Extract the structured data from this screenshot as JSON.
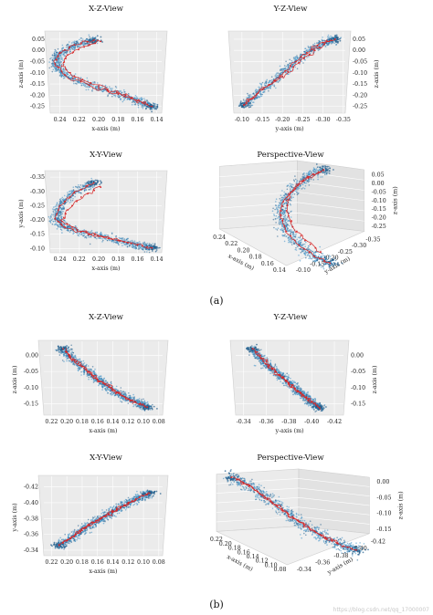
{
  "figure": {
    "captions": [
      "(a)",
      "(b)"
    ],
    "watermark": "https://blog.csdn.net/qq_17000007"
  },
  "colors": {
    "scatter": "#3a8fc7",
    "scatter_dark": "#1f5d8c",
    "path": "#d62728",
    "pane": "#ebebeb",
    "pane_side": "#e2e2e2"
  },
  "chart_data": [
    {
      "id": "a-xz",
      "type": "scatter",
      "title": "X-Z-View",
      "group": "a",
      "kind": "2d",
      "xlabel": "x-axis (m)",
      "ylabel": "z-axis (m)",
      "xticks": [
        "0.24",
        "0.22",
        "0.20",
        "0.18",
        "0.16",
        "0.14"
      ],
      "yticks": [
        "0.05",
        "0.00",
        "-0.05",
        "-0.10",
        "-0.15",
        "-0.20",
        "-0.25"
      ],
      "xlim": [
        0.25,
        0.135
      ],
      "ylim": [
        -0.28,
        0.07
      ],
      "path": [
        [
          0.205,
          0.045
        ],
        [
          0.225,
          0.025
        ],
        [
          0.24,
          -0.01
        ],
        [
          0.245,
          -0.06
        ],
        [
          0.235,
          -0.11
        ],
        [
          0.21,
          -0.155
        ],
        [
          0.18,
          -0.195
        ],
        [
          0.16,
          -0.225
        ],
        [
          0.145,
          -0.25
        ]
      ],
      "path2": [
        [
          0.198,
          0.04
        ],
        [
          0.215,
          0.015
        ],
        [
          0.232,
          -0.02
        ],
        [
          0.238,
          -0.07
        ],
        [
          0.225,
          -0.115
        ],
        [
          0.2,
          -0.16
        ],
        [
          0.172,
          -0.2
        ],
        [
          0.152,
          -0.232
        ]
      ],
      "noise": 0.012,
      "noise_unit": "x"
    },
    {
      "id": "a-yz",
      "type": "scatter",
      "title": "Y-Z-View",
      "group": "a",
      "kind": "2d",
      "xlabel": "y-axis (m)",
      "ylabel": "z-axis (m)",
      "xticks": [
        "-0.10",
        "-0.15",
        "-0.20",
        "-0.25",
        "-0.30",
        "-0.35"
      ],
      "yticks": [
        "0.05",
        "0.00",
        "-0.05",
        "-0.10",
        "-0.15",
        "-0.20",
        "-0.25"
      ],
      "xlim": [
        -0.08,
        -0.355
      ],
      "ylim": [
        -0.28,
        0.07
      ],
      "path": [
        [
          -0.105,
          -0.245
        ],
        [
          -0.14,
          -0.19
        ],
        [
          -0.18,
          -0.135
        ],
        [
          -0.22,
          -0.07
        ],
        [
          -0.26,
          -0.01
        ],
        [
          -0.3,
          0.035
        ],
        [
          -0.33,
          0.05
        ]
      ],
      "path2": [
        [
          -0.11,
          -0.235
        ],
        [
          -0.15,
          -0.175
        ],
        [
          -0.2,
          -0.115
        ],
        [
          -0.24,
          -0.055
        ],
        [
          -0.28,
          0.0
        ],
        [
          -0.315,
          0.04
        ]
      ],
      "noise": 0.012,
      "noise_unit": "y"
    },
    {
      "id": "a-xy",
      "type": "scatter",
      "title": "X-Y-View",
      "group": "a",
      "kind": "2d",
      "xlabel": "x-axis (m)",
      "ylabel": "y-axis (m)",
      "xticks": [
        "0.24",
        "0.22",
        "0.20",
        "0.18",
        "0.16",
        "0.14"
      ],
      "yticks": [
        "-0.35",
        "-0.30",
        "-0.25",
        "-0.20",
        "-0.15",
        "-0.10"
      ],
      "xlim": [
        0.25,
        0.135
      ],
      "ylim": [
        -0.085,
        -0.36
      ],
      "path": [
        [
          0.205,
          -0.33
        ],
        [
          0.225,
          -0.295
        ],
        [
          0.24,
          -0.25
        ],
        [
          0.245,
          -0.205
        ],
        [
          0.235,
          -0.175
        ],
        [
          0.21,
          -0.15
        ],
        [
          0.18,
          -0.128
        ],
        [
          0.16,
          -0.112
        ],
        [
          0.145,
          -0.102
        ]
      ],
      "path2": [
        [
          0.198,
          -0.315
        ],
        [
          0.218,
          -0.28
        ],
        [
          0.232,
          -0.235
        ],
        [
          0.238,
          -0.195
        ],
        [
          0.222,
          -0.165
        ],
        [
          0.195,
          -0.14
        ],
        [
          0.17,
          -0.12
        ]
      ],
      "noise": 0.012,
      "noise_unit": "x"
    },
    {
      "id": "a-persp",
      "type": "scatter",
      "title": "Perspective-View",
      "group": "a",
      "kind": "3d",
      "xlabel": "x-axis (m)",
      "ylabel": "y-axis (m)",
      "zlabel": "z-axis (m)",
      "xticks": [
        "0.24",
        "0.22",
        "0.20",
        "0.18",
        "0.16",
        "0.14"
      ],
      "yticks": [
        "-0.10",
        "-0.15",
        "-0.20",
        "-0.25",
        "-0.30",
        "-0.35"
      ],
      "zticks": [
        "0.05",
        "0.00",
        "-0.05",
        "-0.10",
        "-0.15",
        "-0.20",
        "-0.25"
      ],
      "path": [
        [
          0.72,
          0.08
        ],
        [
          0.62,
          0.14
        ],
        [
          0.53,
          0.24
        ],
        [
          0.46,
          0.36
        ],
        [
          0.44,
          0.48
        ],
        [
          0.48,
          0.62
        ],
        [
          0.56,
          0.74
        ],
        [
          0.66,
          0.84
        ],
        [
          0.76,
          0.9
        ]
      ],
      "path2": [
        [
          0.7,
          0.1
        ],
        [
          0.58,
          0.18
        ],
        [
          0.5,
          0.3
        ],
        [
          0.48,
          0.44
        ],
        [
          0.52,
          0.58
        ],
        [
          0.6,
          0.7
        ],
        [
          0.7,
          0.8
        ]
      ]
    },
    {
      "id": "b-xz",
      "type": "scatter",
      "title": "X-Z-View",
      "group": "b",
      "kind": "2d",
      "xlabel": "x-axis (m)",
      "ylabel": "z-axis (m)",
      "xticks": [
        "0.22",
        "0.20",
        "0.18",
        "0.16",
        "0.14",
        "0.12",
        "0.10",
        "0.08"
      ],
      "yticks": [
        "0.00",
        "-0.05",
        "-0.10",
        "-0.15"
      ],
      "xlim": [
        0.23,
        0.075
      ],
      "ylim": [
        -0.185,
        0.035
      ],
      "path": [
        [
          0.205,
          0.02
        ],
        [
          0.195,
          -0.005
        ],
        [
          0.18,
          -0.035
        ],
        [
          0.165,
          -0.065
        ],
        [
          0.15,
          -0.09
        ],
        [
          0.135,
          -0.115
        ],
        [
          0.12,
          -0.135
        ],
        [
          0.105,
          -0.15
        ],
        [
          0.095,
          -0.16
        ]
      ],
      "path2": [
        [
          0.2,
          0.01
        ],
        [
          0.188,
          -0.02
        ],
        [
          0.172,
          -0.05
        ],
        [
          0.158,
          -0.08
        ],
        [
          0.142,
          -0.1
        ],
        [
          0.128,
          -0.125
        ],
        [
          0.112,
          -0.145
        ]
      ],
      "noise": 0.01,
      "noise_unit": "x"
    },
    {
      "id": "b-yz",
      "type": "scatter",
      "title": "Y-Z-View",
      "group": "b",
      "kind": "2d",
      "xlabel": "y-axis (m)",
      "ylabel": "z-axis (m)",
      "xticks": [
        "-0.34",
        "-0.36",
        "-0.38",
        "-0.40",
        "-0.42"
      ],
      "yticks": [
        "0.00",
        "-0.05",
        "-0.10",
        "-0.15"
      ],
      "xlim": [
        -0.333,
        -0.428
      ],
      "ylim": [
        -0.185,
        0.035
      ],
      "path": [
        [
          -0.348,
          0.02
        ],
        [
          -0.355,
          -0.01
        ],
        [
          -0.362,
          -0.035
        ],
        [
          -0.372,
          -0.06
        ],
        [
          -0.38,
          -0.085
        ],
        [
          -0.388,
          -0.11
        ],
        [
          -0.395,
          -0.13
        ],
        [
          -0.402,
          -0.15
        ],
        [
          -0.407,
          -0.162
        ]
      ],
      "path2": [
        [
          -0.352,
          0.01
        ],
        [
          -0.36,
          -0.02
        ],
        [
          -0.368,
          -0.05
        ],
        [
          -0.377,
          -0.08
        ],
        [
          -0.385,
          -0.105
        ],
        [
          -0.393,
          -0.125
        ],
        [
          -0.4,
          -0.145
        ]
      ],
      "noise": 0.004,
      "noise_unit": "y"
    },
    {
      "id": "b-xy",
      "type": "scatter",
      "title": "X-Y-View",
      "group": "b",
      "kind": "2d",
      "xlabel": "x-axis (m)",
      "ylabel": "y-axis (m)",
      "xticks": [
        "0.22",
        "0.20",
        "0.18",
        "0.16",
        "0.14",
        "0.12",
        "0.10",
        "0.08"
      ],
      "yticks": [
        "-0.42",
        "-0.40",
        "-0.38",
        "-0.36",
        "-0.34"
      ],
      "xlim": [
        0.23,
        0.075
      ],
      "ylim": [
        -0.333,
        -0.43
      ],
      "path": [
        [
          0.21,
          -0.346
        ],
        [
          0.195,
          -0.355
        ],
        [
          0.18,
          -0.365
        ],
        [
          0.165,
          -0.375
        ],
        [
          0.15,
          -0.383
        ],
        [
          0.135,
          -0.392
        ],
        [
          0.12,
          -0.4
        ],
        [
          0.105,
          -0.407
        ],
        [
          0.092,
          -0.412
        ]
      ],
      "path2": [
        [
          0.205,
          -0.35
        ],
        [
          0.188,
          -0.36
        ],
        [
          0.172,
          -0.372
        ],
        [
          0.157,
          -0.38
        ],
        [
          0.14,
          -0.388
        ],
        [
          0.125,
          -0.396
        ],
        [
          0.11,
          -0.404
        ]
      ],
      "noise": 0.004,
      "noise_unit": "y"
    },
    {
      "id": "b-persp",
      "type": "scatter",
      "title": "Perspective-View",
      "group": "b",
      "kind": "3d",
      "xlabel": "x-axis (m)",
      "ylabel": "y-axis (m)",
      "zlabel": "z-axis (m)",
      "xticks": [
        "0.22",
        "0.20",
        "0.18",
        "0.16",
        "0.14",
        "0.12",
        "0.10",
        "0.08"
      ],
      "yticks": [
        "-0.34",
        "-0.36",
        "-0.38",
        "-0.40",
        "-0.42"
      ],
      "zticks": [
        "0.00",
        "-0.05",
        "-0.10",
        "-0.15"
      ],
      "path": [
        [
          0.14,
          0.08
        ],
        [
          0.24,
          0.15
        ],
        [
          0.33,
          0.25
        ],
        [
          0.42,
          0.36
        ],
        [
          0.52,
          0.47
        ],
        [
          0.62,
          0.58
        ],
        [
          0.72,
          0.67
        ],
        [
          0.82,
          0.74
        ],
        [
          0.9,
          0.78
        ]
      ],
      "path2": [
        [
          0.18,
          0.1
        ],
        [
          0.28,
          0.2
        ],
        [
          0.38,
          0.31
        ],
        [
          0.48,
          0.42
        ],
        [
          0.58,
          0.53
        ],
        [
          0.68,
          0.63
        ],
        [
          0.78,
          0.71
        ]
      ]
    }
  ]
}
